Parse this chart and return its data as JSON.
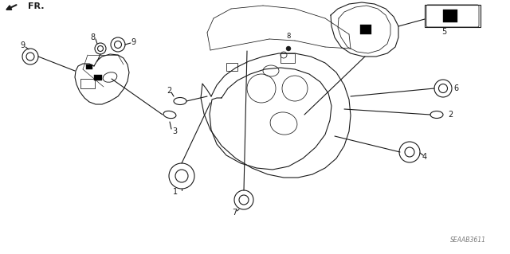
{
  "bg": "#ffffff",
  "lc": "#1a1a1a",
  "diagram_code": "SEAAB3611",
  "lw": 0.8
}
